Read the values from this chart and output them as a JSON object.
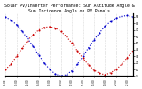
{
  "title": "Solar PV/Inverter Performance: Sun Altitude Angle & Sun Incidence Angle on PV Panels",
  "title_fontsize": 3.5,
  "bg_color": "#ffffff",
  "grid_color": "#cccccc",
  "x_values": [
    0,
    1,
    2,
    3,
    4,
    5,
    6,
    7,
    8,
    9,
    10,
    11,
    12,
    13,
    14,
    15,
    16,
    17,
    18,
    19,
    20,
    21,
    22,
    23
  ],
  "blue_values": [
    90,
    85,
    78,
    68,
    57,
    45,
    32,
    20,
    10,
    3,
    0,
    2,
    8,
    18,
    30,
    43,
    55,
    66,
    76,
    83,
    88,
    91,
    92,
    90
  ],
  "red_values": [
    10,
    18,
    30,
    42,
    54,
    63,
    70,
    74,
    75,
    73,
    68,
    60,
    50,
    38,
    27,
    17,
    9,
    4,
    2,
    5,
    10,
    18,
    28,
    38
  ],
  "blue_color": "#0000cc",
  "red_color": "#cc0000",
  "ylim": [
    0,
    95
  ],
  "xlim": [
    0,
    23
  ],
  "yticks_right": [
    0,
    10,
    20,
    30,
    40,
    50,
    60,
    70,
    80,
    90
  ],
  "ytick_labels_right": [
    "0",
    "10",
    "20",
    "30",
    "40",
    "50",
    "60",
    "70",
    "80",
    "90"
  ],
  "xtick_labels": [
    "00:00",
    "02:00",
    "04:00",
    "06:00",
    "08:00",
    "10:00",
    "12:00",
    "14:00",
    "16:00",
    "18:00",
    "20:00",
    "22:00"
  ],
  "xtick_positions": [
    0,
    2,
    4,
    6,
    8,
    10,
    12,
    14,
    16,
    18,
    20,
    22
  ],
  "marker_size": 1.5
}
